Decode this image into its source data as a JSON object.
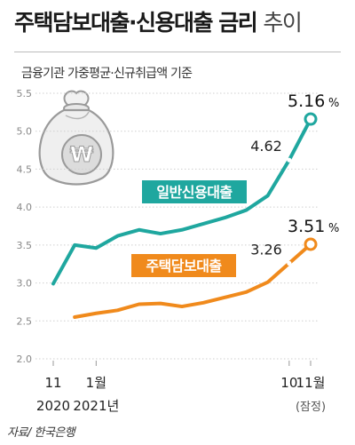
{
  "header": {
    "title_main": "주택담보대출·신용대출 금리",
    "title_suffix": "추이",
    "subtitle": "금융기관 가중평균·신규취급액 기준"
  },
  "source": "자료/ 한국은행",
  "colors": {
    "credit": "#1fa79f",
    "mortgage": "#f08a1c",
    "grid": "#cfcfcf",
    "axis_text": "#888888"
  },
  "chart_data": {
    "type": "line",
    "ylim": [
      2.0,
      5.5
    ],
    "yticks": [
      "2.0",
      "2.5",
      "3.0",
      "3.5",
      "4.0",
      "4.5",
      "5.0",
      "5.5"
    ],
    "ytick_values": [
      2.0,
      2.5,
      3.0,
      3.5,
      4.0,
      4.5,
      5.0,
      5.5
    ],
    "x_ticks": [
      {
        "index": 0,
        "top": "11",
        "bottom": "2020"
      },
      {
        "index": 2,
        "top": "1월",
        "bottom": "2021년"
      },
      {
        "index": 11,
        "top": "10",
        "bottom": ""
      },
      {
        "index": 12,
        "top": "11월",
        "bottom": "(잠정)"
      }
    ],
    "x_count": 13,
    "series": [
      {
        "name": "일반신용대출",
        "key": "credit",
        "values": [
          2.99,
          3.5,
          3.46,
          3.62,
          3.7,
          3.65,
          3.7,
          3.78,
          3.86,
          3.96,
          4.15,
          4.62,
          5.16
        ],
        "mid_label": "4.62",
        "end_label": "5.16",
        "end_unit": "%"
      },
      {
        "name": "주택담보대출",
        "key": "mortgage",
        "values": [
          2.55,
          2.6,
          2.64,
          2.72,
          2.73,
          2.69,
          2.74,
          2.81,
          2.88,
          3.01,
          3.26,
          3.51
        ],
        "x_offset": 1,
        "mid_label": "3.26",
        "end_label": "3.51",
        "end_unit": "%"
      }
    ]
  }
}
